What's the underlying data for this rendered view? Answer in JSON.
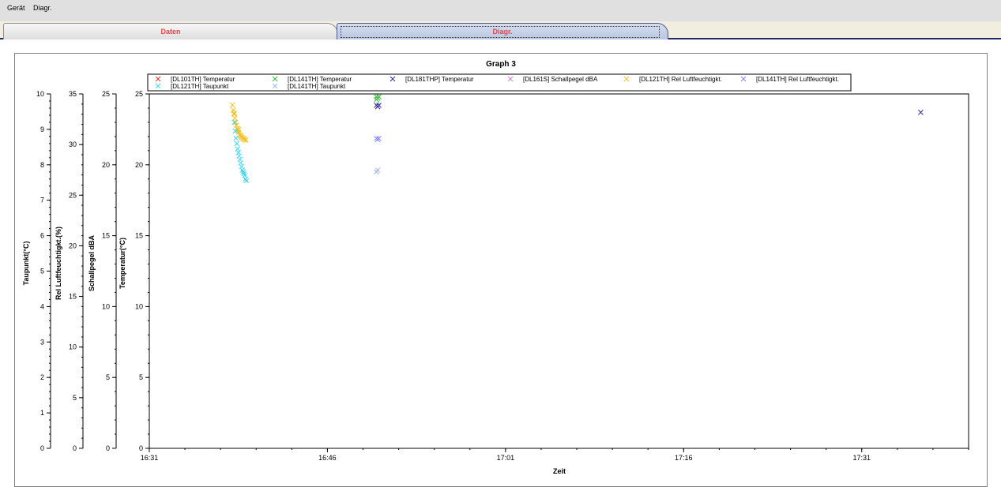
{
  "menu": {
    "items": [
      {
        "label": "Gerät"
      },
      {
        "label": "Diagr."
      }
    ]
  },
  "tabs": [
    {
      "label": "Daten",
      "active": false
    },
    {
      "label": "Diagr.",
      "active": true
    }
  ],
  "chart_data": {
    "type": "scatter",
    "title": "Graph 3",
    "xlabel": "Zeit",
    "x_range": [
      "16:31",
      "17:40"
    ],
    "x_ticks": [
      "16:31",
      "16:46",
      "17:01",
      "17:16",
      "17:31"
    ],
    "grid": false,
    "legend": "top",
    "y_axes": [
      {
        "id": "tau",
        "label": "Taupunkt(°C)",
        "range": [
          0,
          10
        ],
        "ticks": [
          0,
          1,
          2,
          3,
          4,
          5,
          6,
          7,
          8,
          9,
          10
        ]
      },
      {
        "id": "rel",
        "label": "Rel Luftfeuchtigkt.(%)",
        "range": [
          0,
          35
        ],
        "ticks": [
          0,
          5,
          10,
          15,
          20,
          25,
          30,
          35
        ]
      },
      {
        "id": "dba",
        "label": "Schallpegel dBA",
        "range": [
          0,
          25
        ],
        "ticks": [
          0,
          5,
          10,
          15,
          20,
          25
        ]
      },
      {
        "id": "temp",
        "label": "Temperatur(°C)",
        "range": [
          0,
          25
        ],
        "ticks": [
          0,
          5,
          10,
          15,
          20,
          25
        ]
      }
    ],
    "series": [
      {
        "name": "[DL101TH] Temperatur",
        "color": "#ff3030",
        "axis": "temp",
        "points": []
      },
      {
        "name": "[DL141TH] Temperatur",
        "color": "#30c030",
        "axis": "temp",
        "points": [
          [
            "16:50:08",
            24.8
          ],
          [
            "16:50:20",
            24.8
          ],
          [
            "16:50:08",
            24.6
          ],
          [
            "16:50:14",
            24.7
          ]
        ]
      },
      {
        "name": "[DL181THP] Temperatur",
        "color": "#2a2aa0",
        "axis": "temp",
        "points": [
          [
            "16:50:08",
            24.2
          ],
          [
            "16:50:14",
            24.1
          ],
          [
            "16:50:20",
            24.2
          ],
          [
            "17:35:58",
            23.7
          ]
        ]
      },
      {
        "name": "[DL161S] Schallpegel dBA",
        "color": "#e078e0",
        "axis": "dba",
        "points": []
      },
      {
        "name": "[DL121TH] Rel Luftfeuchtigkt.",
        "color": "#f0c020",
        "axis": "rel",
        "points": [
          [
            "16:38:00",
            33.9
          ],
          [
            "16:38:04",
            33.4
          ],
          [
            "16:38:08",
            33.0
          ],
          [
            "16:38:12",
            32.6
          ],
          [
            "16:38:16",
            32.2
          ],
          [
            "16:38:20",
            31.9
          ],
          [
            "16:38:24",
            31.6
          ],
          [
            "16:38:28",
            31.4
          ],
          [
            "16:38:32",
            31.2
          ],
          [
            "16:38:36",
            31.0
          ],
          [
            "16:38:40",
            30.9
          ],
          [
            "16:38:44",
            30.8
          ],
          [
            "16:38:48",
            30.7
          ],
          [
            "16:38:52",
            30.6
          ],
          [
            "16:38:56",
            30.5
          ],
          [
            "16:39:00",
            30.6
          ],
          [
            "16:39:04",
            30.4
          ],
          [
            "16:39:08",
            30.5
          ],
          [
            "16:38:10",
            33.1
          ],
          [
            "16:38:30",
            31.5
          ]
        ]
      },
      {
        "name": "[DL141TH] Rel Luftfeuchtigkt.",
        "color": "#8080ff",
        "axis": "rel",
        "points": [
          [
            "16:50:08",
            30.6
          ],
          [
            "16:50:14",
            30.5
          ],
          [
            "16:50:20",
            30.6
          ]
        ]
      },
      {
        "name": "[DL121TH] Taupunkt",
        "color": "#40d8f0",
        "axis": "tau",
        "points": [
          [
            "16:38:10",
            9.2
          ],
          [
            "16:38:14",
            8.95
          ],
          [
            "16:38:18",
            8.75
          ],
          [
            "16:38:22",
            8.6
          ],
          [
            "16:38:26",
            8.45
          ],
          [
            "16:38:30",
            8.35
          ],
          [
            "16:38:34",
            8.25
          ],
          [
            "16:38:38",
            8.15
          ],
          [
            "16:38:42",
            8.05
          ],
          [
            "16:38:46",
            7.95
          ],
          [
            "16:38:50",
            7.85
          ],
          [
            "16:38:54",
            7.8
          ],
          [
            "16:38:58",
            7.75
          ],
          [
            "16:39:02",
            7.7
          ],
          [
            "16:39:06",
            7.6
          ],
          [
            "16:39:10",
            7.55
          ]
        ]
      },
      {
        "name": "[DL141TH] Taupunkt",
        "color": "#a0b8f0",
        "axis": "tau",
        "points": [
          [
            "16:50:08",
            7.8
          ],
          [
            "16:50:14",
            7.85
          ]
        ]
      }
    ]
  }
}
